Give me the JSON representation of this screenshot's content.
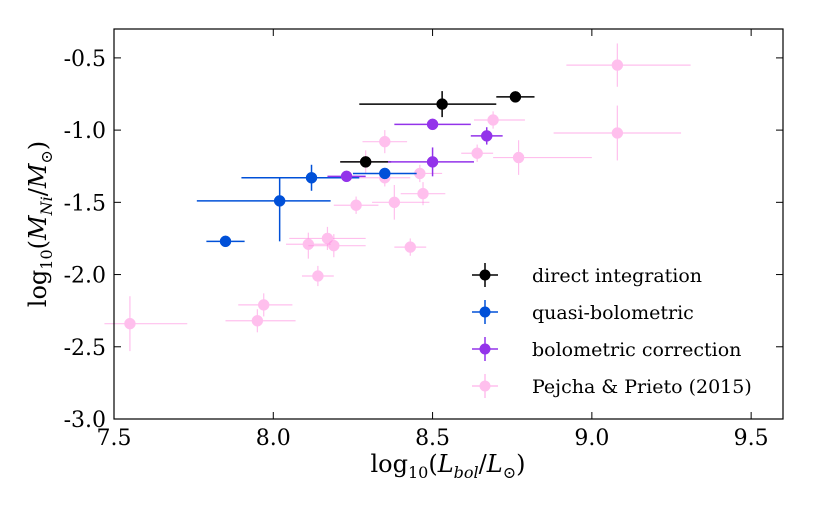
{
  "chart_data": {
    "type": "scatter",
    "title": "",
    "xlabel_parts": {
      "prefix": "log",
      "sub": "10",
      "open": "(",
      "num": "L",
      "num_sub": "bol",
      "slash": "/",
      "den": "L",
      "den_sub": "⊙",
      "close": ")"
    },
    "ylabel_parts": {
      "prefix": "log",
      "sub": "10",
      "open": "(",
      "num": "M",
      "num_sub": "Ni",
      "slash": "/",
      "den": "M",
      "den_sub": "⊙",
      "close": ")"
    },
    "xlim": [
      7.5,
      9.6
    ],
    "ylim": [
      -3.0,
      -0.3
    ],
    "xticks": [
      7.5,
      8.0,
      8.5,
      9.0,
      9.5
    ],
    "xtick_labels": [
      "7.5",
      "8.0",
      "8.5",
      "9.0",
      "9.5"
    ],
    "yticks": [
      -3.0,
      -2.5,
      -2.0,
      -1.5,
      -1.0,
      -0.5
    ],
    "ytick_labels": [
      "-3.0",
      "-2.5",
      "-2.0",
      "-1.5",
      "-1.0",
      "-0.5"
    ],
    "legend_position": "lower-right",
    "series": [
      {
        "name": "direct integration",
        "color": "#000000",
        "opacity": 1,
        "points": [
          {
            "x": 8.29,
            "y": -1.22,
            "xerr": [
              0.08,
              0.08
            ],
            "yerr": [
              0.0,
              0.0
            ]
          },
          {
            "x": 8.53,
            "y": -0.82,
            "xerr": [
              0.26,
              0.17
            ],
            "yerr": [
              0.09,
              0.09
            ]
          },
          {
            "x": 8.76,
            "y": -0.77,
            "xerr": [
              0.06,
              0.06
            ],
            "yerr": [
              0.0,
              0.0
            ]
          },
          {
            "x": 8.5,
            "y": -1.0,
            "xerr": [
              0.0,
              0.0
            ],
            "yerr": [
              0.0,
              0.0
            ],
            "hidden": true
          }
        ]
      },
      {
        "name": "quasi-bolometric",
        "color": "#0050d8",
        "opacity": 1,
        "points": [
          {
            "x": 7.85,
            "y": -1.77,
            "xerr": [
              0.06,
              0.06
            ],
            "yerr": [
              0.0,
              0.0
            ]
          },
          {
            "x": 8.02,
            "y": -1.49,
            "xerr": [
              0.26,
              0.16
            ],
            "yerr": [
              0.28,
              0.16
            ]
          },
          {
            "x": 8.12,
            "y": -1.33,
            "xerr": [
              0.22,
              0.15
            ],
            "yerr": [
              0.09,
              0.09
            ]
          },
          {
            "x": 8.35,
            "y": -1.3,
            "xerr": [
              0.1,
              0.1
            ],
            "yerr": [
              0.0,
              0.0
            ]
          }
        ]
      },
      {
        "name": "bolometric correction",
        "color": "#9333ea",
        "opacity": 1,
        "points": [
          {
            "x": 8.23,
            "y": -1.32,
            "xerr": [
              0.06,
              0.06
            ],
            "yerr": [
              0.0,
              0.0
            ]
          },
          {
            "x": 8.5,
            "y": -0.96,
            "xerr": [
              0.12,
              0.12
            ],
            "yerr": [
              0.0,
              0.0
            ]
          },
          {
            "x": 8.5,
            "y": -1.22,
            "xerr": [
              0.14,
              0.13
            ],
            "yerr": [
              0.1,
              0.1
            ]
          },
          {
            "x": 8.67,
            "y": -1.04,
            "xerr": [
              0.05,
              0.05
            ],
            "yerr": [
              0.06,
              0.06
            ]
          }
        ]
      },
      {
        "name": "Pejcha & Prieto (2015)",
        "color": "#ff8ce0",
        "opacity": 0.55,
        "points": [
          {
            "x": 7.55,
            "y": -2.34,
            "xerr": [
              0.08,
              0.18
            ],
            "yerr": [
              0.19,
              0.19
            ]
          },
          {
            "x": 7.95,
            "y": -2.32,
            "xerr": [
              0.1,
              0.12
            ],
            "yerr": [
              0.08,
              0.08
            ]
          },
          {
            "x": 7.97,
            "y": -2.21,
            "xerr": [
              0.08,
              0.09
            ],
            "yerr": [
              0.08,
              0.08
            ]
          },
          {
            "x": 8.11,
            "y": -1.79,
            "xerr": [
              0.07,
              0.07
            ],
            "yerr": [
              0.1,
              0.08
            ]
          },
          {
            "x": 8.14,
            "y": -2.01,
            "xerr": [
              0.05,
              0.05
            ],
            "yerr": [
              0.07,
              0.07
            ]
          },
          {
            "x": 8.17,
            "y": -1.75,
            "xerr": [
              0.12,
              0.12
            ],
            "yerr": [
              0.08,
              0.08
            ]
          },
          {
            "x": 8.19,
            "y": -1.8,
            "xerr": [
              0.08,
              0.1
            ],
            "yerr": [
              0.08,
              0.08
            ]
          },
          {
            "x": 8.26,
            "y": -1.52,
            "xerr": [
              0.07,
              0.07
            ],
            "yerr": [
              0.06,
              0.06
            ]
          },
          {
            "x": 8.29,
            "y": -1.22,
            "xerr": [
              0.08,
              0.08
            ],
            "yerr": [
              0.08,
              0.08
            ]
          },
          {
            "x": 8.35,
            "y": -1.08,
            "xerr": [
              0.07,
              0.07
            ],
            "yerr": [
              0.08,
              0.08
            ]
          },
          {
            "x": 8.35,
            "y": -1.33,
            "xerr": [
              0.08,
              0.08
            ],
            "yerr": [
              0.06,
              0.06
            ]
          },
          {
            "x": 8.38,
            "y": -1.5,
            "xerr": [
              0.07,
              0.11
            ],
            "yerr": [
              0.12,
              0.12
            ]
          },
          {
            "x": 8.43,
            "y": -1.81,
            "xerr": [
              0.05,
              0.05
            ],
            "yerr": [
              0.06,
              0.06
            ]
          },
          {
            "x": 8.46,
            "y": -1.3,
            "xerr": [
              0.07,
              0.07
            ],
            "yerr": [
              0.06,
              0.06
            ]
          },
          {
            "x": 8.47,
            "y": -1.44,
            "xerr": [
              0.07,
              0.07
            ],
            "yerr": [
              0.08,
              0.08
            ]
          },
          {
            "x": 8.64,
            "y": -1.16,
            "xerr": [
              0.05,
              0.05
            ],
            "yerr": [
              0.06,
              0.06
            ]
          },
          {
            "x": 8.69,
            "y": -0.93,
            "xerr": [
              0.06,
              0.1
            ],
            "yerr": [
              0.06,
              0.06
            ]
          },
          {
            "x": 8.77,
            "y": -1.19,
            "xerr": [
              0.08,
              0.23
            ],
            "yerr": [
              0.12,
              0.12
            ]
          },
          {
            "x": 9.08,
            "y": -0.55,
            "xerr": [
              0.16,
              0.23
            ],
            "yerr": [
              0.15,
              0.15
            ]
          },
          {
            "x": 9.08,
            "y": -1.02,
            "xerr": [
              0.2,
              0.2
            ],
            "yerr": [
              0.19,
              0.19
            ]
          }
        ]
      }
    ]
  }
}
